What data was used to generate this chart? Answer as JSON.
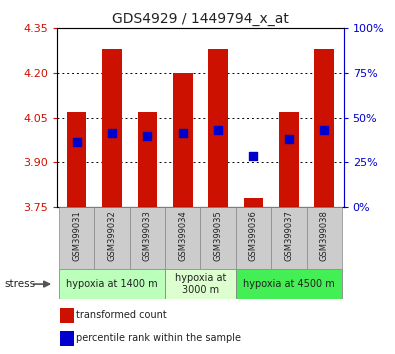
{
  "title": "GDS4929 / 1449794_x_at",
  "samples": [
    "GSM399031",
    "GSM399032",
    "GSM399033",
    "GSM399034",
    "GSM399035",
    "GSM399036",
    "GSM399037",
    "GSM399038"
  ],
  "bar_tops": [
    4.07,
    4.28,
    4.07,
    4.2,
    4.28,
    3.78,
    4.07,
    4.28
  ],
  "bar_bottom": 3.75,
  "blue_dots_y": [
    3.97,
    4.0,
    3.99,
    4.0,
    4.01,
    3.92,
    3.98,
    4.01
  ],
  "ylim": [
    3.75,
    4.35
  ],
  "yticks": [
    3.75,
    3.9,
    4.05,
    4.2,
    4.35
  ],
  "right_yticks_pct": [
    0,
    25,
    50,
    75,
    100
  ],
  "bar_color": "#cc1100",
  "dot_color": "#0000cc",
  "bar_width": 0.55,
  "groups": [
    {
      "label": "hypoxia at 1400 m",
      "indices": [
        0,
        1,
        2
      ],
      "color": "#bbffbb"
    },
    {
      "label": "hypoxia at\n3000 m",
      "indices": [
        3,
        4
      ],
      "color": "#ddffd0"
    },
    {
      "label": "hypoxia at 4500 m",
      "indices": [
        5,
        6,
        7
      ],
      "color": "#44ee55"
    }
  ],
  "legend_red": "transformed count",
  "legend_blue": "percentile rank within the sample",
  "stress_label": "stress",
  "title_color": "#222222",
  "ytick_color_left": "#cc1100",
  "ytick_color_right": "#0000cc",
  "grid_color": "#000000",
  "label_bg_color": "#cccccc",
  "label_border_color": "#888888"
}
